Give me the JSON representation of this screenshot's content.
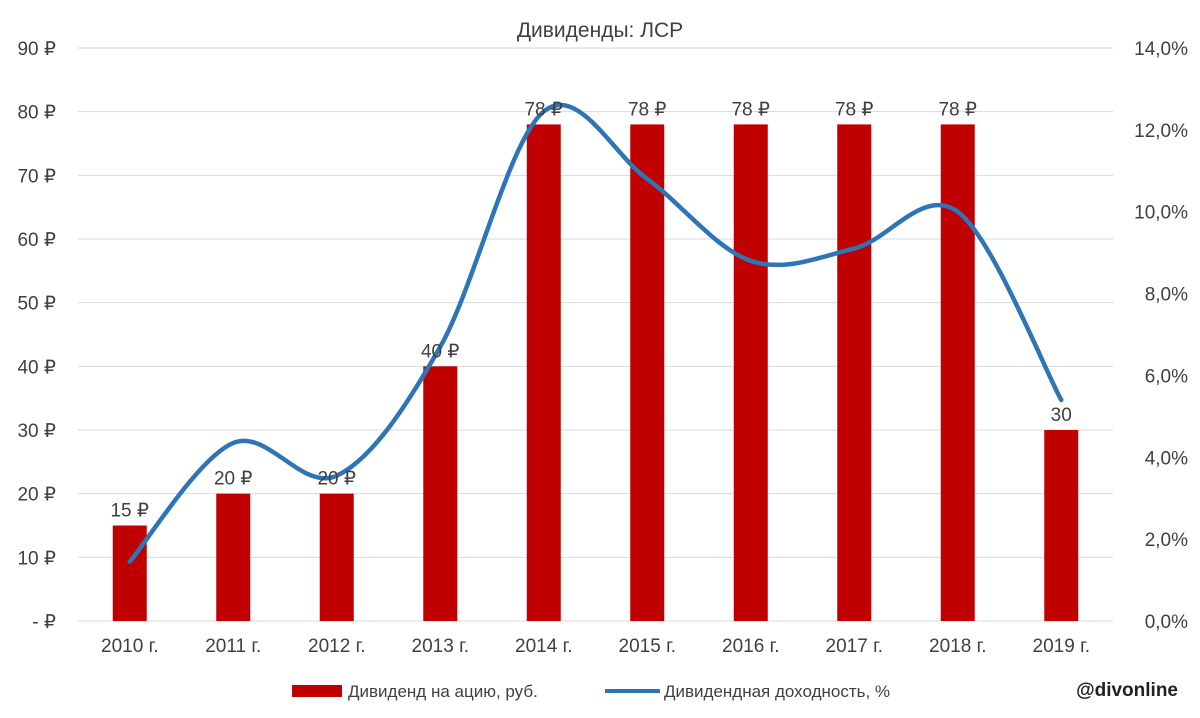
{
  "chart_data": {
    "type": "bar",
    "title": "Дивиденды: ЛСР",
    "categories": [
      "2010 г.",
      "2011 г.",
      "2012 г.",
      "2013 г.",
      "2014 г.",
      "2015 г.",
      "2016 г.",
      "2017 г.",
      "2018 г.",
      "2019 г."
    ],
    "series": [
      {
        "name": "Дивиденд на ацию, руб.",
        "type": "bar",
        "axis": "left",
        "color": "#c00000",
        "values": [
          15,
          20,
          20,
          40,
          78,
          78,
          78,
          78,
          78,
          30
        ],
        "data_labels": [
          "15 ₽",
          "20 ₽",
          "20 ₽",
          "40 ₽",
          "78 ₽",
          "78 ₽",
          "78 ₽",
          "78 ₽",
          "78 ₽",
          "30"
        ]
      },
      {
        "name": "Дивидендная доходность, %",
        "type": "line",
        "smooth": true,
        "axis": "right",
        "color": "#2e75b6",
        "values": [
          1.45,
          4.35,
          3.55,
          6.7,
          12.45,
          10.8,
          8.8,
          9.1,
          10.0,
          5.4
        ]
      }
    ],
    "y_left": {
      "ylim": [
        0,
        90
      ],
      "ticks": [
        0,
        10,
        20,
        30,
        40,
        50,
        60,
        70,
        80,
        90
      ],
      "tick_labels": [
        "-  ₽",
        "10 ₽",
        "20 ₽",
        "30 ₽",
        "40 ₽",
        "50 ₽",
        "60 ₽",
        "70 ₽",
        "80 ₽",
        "90 ₽"
      ]
    },
    "y_right": {
      "ylim": [
        0,
        14
      ],
      "ticks": [
        0,
        2,
        4,
        6,
        8,
        10,
        12,
        14
      ],
      "tick_labels": [
        "0,0%",
        "2,0%",
        "4,0%",
        "6,0%",
        "8,0%",
        "10,0%",
        "12,0%",
        "14,0%"
      ]
    },
    "grid": true,
    "legend": {
      "position": "bottom",
      "entries": [
        "Дивиденд на ацию, руб.",
        "Дивидендная доходность, %"
      ]
    }
  },
  "watermark": "@divonline"
}
